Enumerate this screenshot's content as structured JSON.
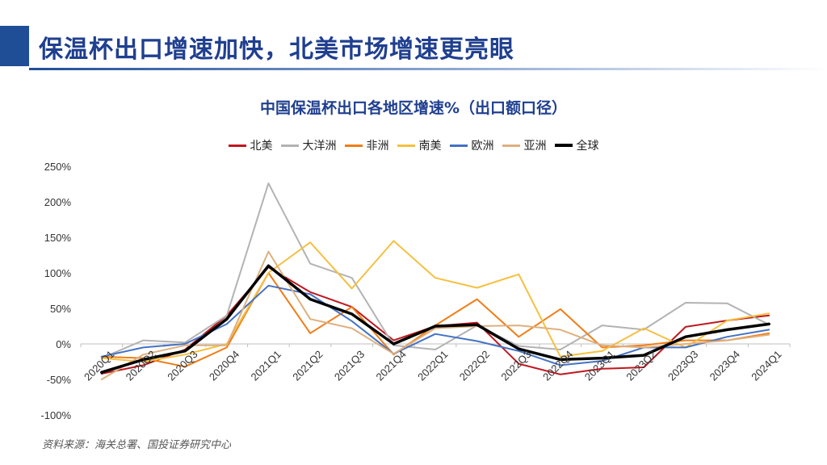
{
  "header": {
    "title": "保温杯出口增速加快，北美市场增速更亮眼"
  },
  "source": "资料来源：海关总署、国投证券研究中心",
  "chart_data": {
    "type": "line",
    "title": "中国保温杯出口各地区增速%（出口额口径）",
    "xlabel": "",
    "ylabel": "",
    "ylim": [
      -100,
      250
    ],
    "yticks": [
      -100,
      -50,
      0,
      50,
      100,
      150,
      200,
      250
    ],
    "ytick_labels": [
      "-100%",
      "-50%",
      "0%",
      "50%",
      "100%",
      "150%",
      "200%",
      "250%"
    ],
    "categories": [
      "2020Q1",
      "2020Q2",
      "2020Q3",
      "2020Q4",
      "2021Q1",
      "2021Q2",
      "2021Q3",
      "2021Q4",
      "2022Q1",
      "2022Q2",
      "2022Q3",
      "2022Q4",
      "2023Q1",
      "2023Q2",
      "2023Q3",
      "2023Q4",
      "2024Q1"
    ],
    "legend_position": "top",
    "series": [
      {
        "name": "北美",
        "color": "#c0171f",
        "width": 2,
        "values": [
          -42,
          -30,
          -8,
          40,
          108,
          73,
          52,
          5,
          25,
          30,
          -28,
          -43,
          -35,
          -33,
          24,
          33,
          40
        ]
      },
      {
        "name": "大洋洲",
        "color": "#b3b3b3",
        "width": 2,
        "values": [
          -20,
          5,
          2,
          40,
          226,
          113,
          93,
          -2,
          -8,
          26,
          -3,
          -8,
          26,
          20,
          58,
          57,
          27
        ]
      },
      {
        "name": "非洲",
        "color": "#f07d16",
        "width": 2,
        "values": [
          -18,
          -20,
          -32,
          -5,
          100,
          15,
          52,
          -15,
          26,
          63,
          10,
          49,
          -5,
          -2,
          5,
          5,
          15
        ]
      },
      {
        "name": "南美",
        "color": "#f5c040",
        "width": 2,
        "values": [
          -20,
          -25,
          -15,
          0,
          100,
          143,
          78,
          145,
          93,
          79,
          98,
          -18,
          -10,
          22,
          -5,
          33,
          43
        ]
      },
      {
        "name": "欧洲",
        "color": "#4472c4",
        "width": 2,
        "values": [
          -18,
          -5,
          0,
          28,
          82,
          70,
          32,
          -14,
          14,
          4,
          -10,
          -30,
          -24,
          -5,
          -5,
          10,
          20
        ]
      },
      {
        "name": "亚洲",
        "color": "#deb07e",
        "width": 2,
        "values": [
          -50,
          -15,
          -2,
          -2,
          130,
          35,
          22,
          -14,
          22,
          25,
          26,
          20,
          -2,
          -5,
          0,
          5,
          13
        ]
      },
      {
        "name": "全球",
        "color": "#000000",
        "width": 3.5,
        "values": [
          -40,
          -22,
          -10,
          35,
          110,
          63,
          42,
          0,
          25,
          27,
          -7,
          -22,
          -20,
          -16,
          10,
          20,
          28
        ]
      }
    ]
  }
}
